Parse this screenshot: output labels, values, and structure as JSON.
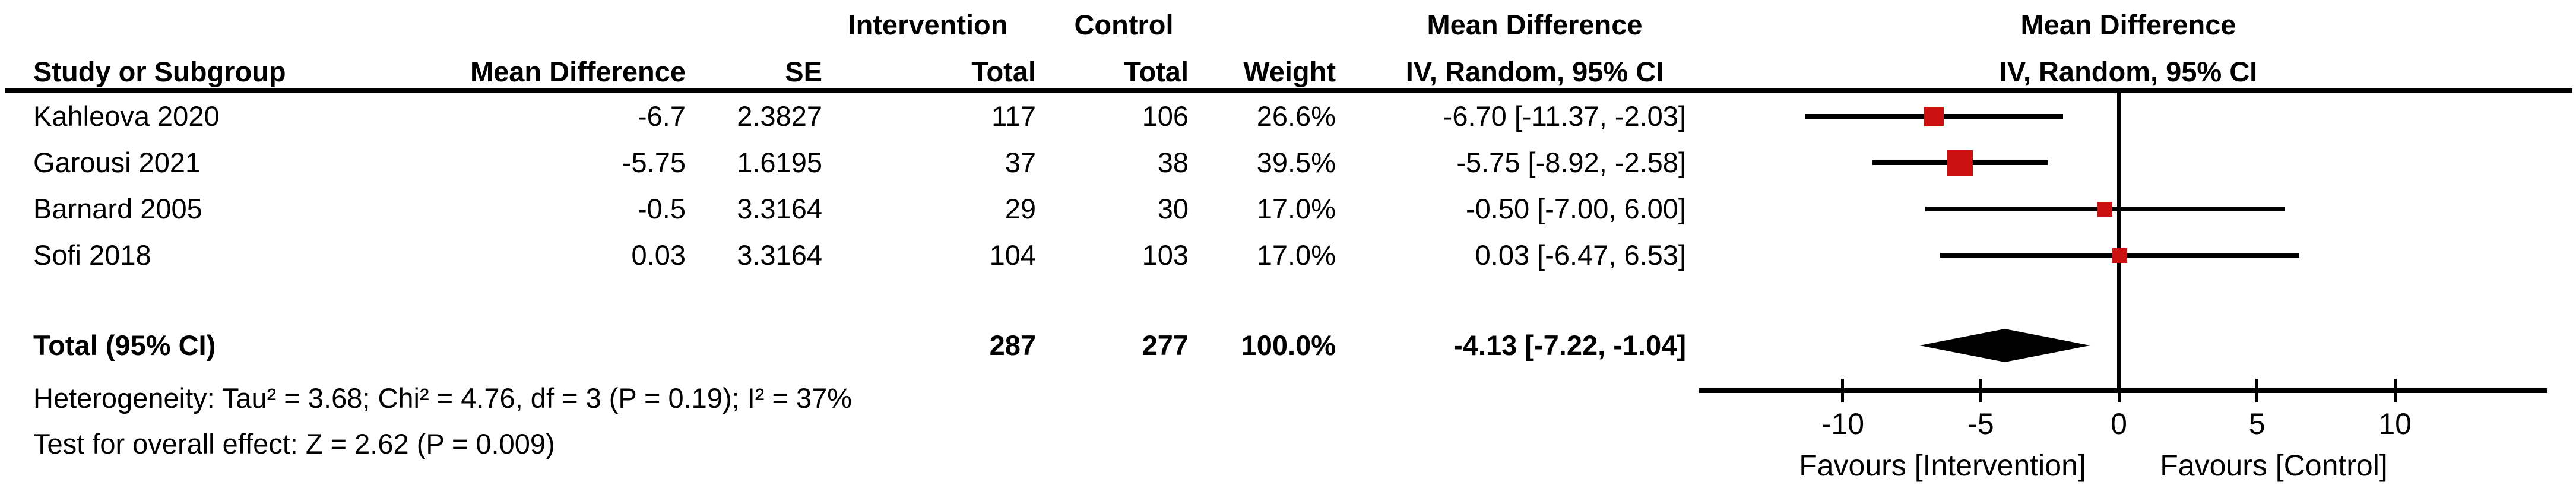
{
  "table": {
    "header_row1": {
      "intervention": "Intervention",
      "control": "Control",
      "mean_difference_ci": "Mean Difference",
      "mean_difference_plot": "Mean Difference"
    },
    "header_row2": {
      "study": "Study or Subgroup",
      "mean_difference": "Mean Difference",
      "se": "SE",
      "total_intervention": "Total",
      "total_control": "Total",
      "weight": "Weight",
      "iv_random_ci": "IV, Random, 95% CI",
      "iv_random_plot": "IV, Random, 95% CI"
    },
    "rows": [
      {
        "study": "Kahleova 2020",
        "mean_difference": "-6.7",
        "se": "2.3827",
        "intervention_total": "117",
        "control_total": "106",
        "weight": "26.6%",
        "ci_text": "-6.70 [-11.37, -2.03]"
      },
      {
        "study": "Garousi 2021",
        "mean_difference": "-5.75",
        "se": "1.6195",
        "intervention_total": "37",
        "control_total": "38",
        "weight": "39.5%",
        "ci_text": "-5.75 [-8.92, -2.58]"
      },
      {
        "study": "Barnard 2005",
        "mean_difference": "-0.5",
        "se": "3.3164",
        "intervention_total": "29",
        "control_total": "30",
        "weight": "17.0%",
        "ci_text": "-0.50 [-7.00, 6.00]"
      },
      {
        "study": "Sofi 2018",
        "mean_difference": "0.03",
        "se": "3.3164",
        "intervention_total": "104",
        "control_total": "103",
        "weight": "17.0%",
        "ci_text": "0.03 [-6.47, 6.53]"
      }
    ],
    "total_row": {
      "label": "Total (95% CI)",
      "intervention_total": "287",
      "control_total": "277",
      "weight": "100.0%",
      "ci_text": "-4.13 [-7.22, -1.04]"
    },
    "heterogeneity": "Heterogeneity: Tau² = 3.68; Chi² = 4.76, df = 3 (P = 0.19); I² = 37%",
    "overall_effect": "Test for overall effect: Z = 2.62 (P = 0.009)"
  },
  "chart_data": {
    "type": "forest",
    "effect_measure": "Mean Difference",
    "method": "IV, Random, 95% CI",
    "studies": [
      {
        "name": "Kahleova 2020",
        "mean": -6.7,
        "lower": -11.37,
        "upper": -2.03,
        "weight_pct": 26.6
      },
      {
        "name": "Garousi 2021",
        "mean": -5.75,
        "lower": -8.92,
        "upper": -2.58,
        "weight_pct": 39.5
      },
      {
        "name": "Barnard 2005",
        "mean": -0.5,
        "lower": -7.0,
        "upper": 6.0,
        "weight_pct": 17.0
      },
      {
        "name": "Sofi 2018",
        "mean": 0.03,
        "lower": -6.47,
        "upper": 6.53,
        "weight_pct": 17.0
      }
    ],
    "overall": {
      "label": "Total (95% CI)",
      "mean": -4.13,
      "lower": -7.22,
      "upper": -1.04,
      "weight_pct": 100.0
    },
    "axis": {
      "ticks": [
        -10,
        -5,
        0,
        5,
        10
      ],
      "zero_line": 0,
      "min": -15.2,
      "max": 15.5,
      "grid": false
    },
    "favours_left": "Favours [Intervention]",
    "favours_right": "Favours [Control]",
    "colors": {
      "marker": "#CC1111",
      "ci_line": "#000000",
      "diamond": "#000000",
      "axis": "#000000",
      "text": "#000000"
    }
  }
}
